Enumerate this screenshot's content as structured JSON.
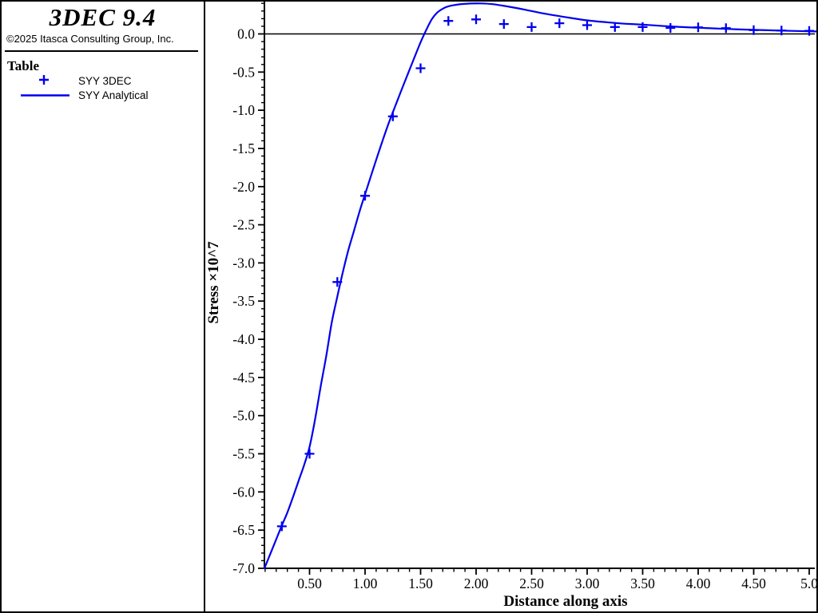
{
  "branding": {
    "title": "3DEC 9.4",
    "copyright": "©2025 Itasca Consulting Group, Inc."
  },
  "legend": {
    "heading": "Table",
    "items": [
      {
        "label": "SYY 3DEC",
        "marker": "plus-marker-icon"
      },
      {
        "label": "SYY Analytical",
        "marker": "line-marker-icon"
      }
    ]
  },
  "colors": {
    "series_blue": "#0000ee",
    "axis_black": "#000000",
    "background": "#ffffff"
  },
  "chart_data": {
    "type": "line",
    "title": "",
    "xlabel": "Distance along axis",
    "ylabel": "Stress ×10^7",
    "xlim": [
      0.094,
      5.08
    ],
    "ylim": [
      -7.0,
      0.42
    ],
    "grid": false,
    "legend_position": "sidebar-top-left",
    "x_major_ticks": [
      0.5,
      1.0,
      1.5,
      2.0,
      2.5,
      3.0,
      3.5,
      4.0,
      4.5,
      5.0
    ],
    "x_tick_labels": [
      "0.50",
      "1.00",
      "1.50",
      "2.00",
      "2.50",
      "3.00",
      "3.50",
      "4.00",
      "4.50",
      "5.0"
    ],
    "y_major_ticks": [
      0.0,
      -0.5,
      -1.0,
      -1.5,
      -2.0,
      -2.5,
      -3.0,
      -3.5,
      -4.0,
      -4.5,
      -5.0,
      -5.5,
      -6.0,
      -6.5,
      -7.0
    ],
    "y_tick_labels": [
      "0.0",
      "-0.5",
      "-1.0",
      "-1.5",
      "-2.0",
      "-2.5",
      "-3.0",
      "-3.5",
      "-4.0",
      "-4.5",
      "-5.0",
      "-5.5",
      "-6.0",
      "-6.5",
      "-7.0"
    ],
    "minor_tick_step": 0.1,
    "x_minor_range": [
      0.1,
      5.0
    ],
    "y_minor_range": [
      -6.9,
      0.4
    ],
    "zero_line": 0.0,
    "series": [
      {
        "name": "SYY 3DEC",
        "type": "scatter",
        "marker": "plus",
        "color": "#0000ee",
        "points": [
          [
            0.25,
            -6.45
          ],
          [
            0.5,
            -5.5
          ],
          [
            0.75,
            -3.25
          ],
          [
            1.0,
            -2.12
          ],
          [
            1.25,
            -1.08
          ],
          [
            1.5,
            -0.45
          ],
          [
            1.75,
            0.17
          ],
          [
            2.0,
            0.19
          ],
          [
            2.25,
            0.13
          ],
          [
            2.5,
            0.09
          ],
          [
            2.75,
            0.14
          ],
          [
            3.0,
            0.115
          ],
          [
            3.25,
            0.09
          ],
          [
            3.5,
            0.09
          ],
          [
            3.75,
            0.078
          ],
          [
            4.0,
            0.086
          ],
          [
            4.25,
            0.075
          ],
          [
            4.5,
            0.05
          ],
          [
            4.75,
            0.044
          ],
          [
            5.0,
            0.04
          ]
        ]
      },
      {
        "name": "SYY Analytical",
        "type": "line",
        "color": "#0000ee",
        "points": [
          [
            0.094,
            -7.0
          ],
          [
            0.15,
            -6.8
          ],
          [
            0.2,
            -6.62
          ],
          [
            0.25,
            -6.44
          ],
          [
            0.3,
            -6.27
          ],
          [
            0.35,
            -6.07
          ],
          [
            0.4,
            -5.86
          ],
          [
            0.45,
            -5.65
          ],
          [
            0.5,
            -5.41
          ],
          [
            0.55,
            -5.05
          ],
          [
            0.6,
            -4.62
          ],
          [
            0.65,
            -4.22
          ],
          [
            0.7,
            -3.78
          ],
          [
            0.75,
            -3.44
          ],
          [
            0.8,
            -3.12
          ],
          [
            0.85,
            -2.83
          ],
          [
            0.9,
            -2.58
          ],
          [
            0.95,
            -2.33
          ],
          [
            1.0,
            -2.1
          ],
          [
            1.1,
            -1.65
          ],
          [
            1.2,
            -1.22
          ],
          [
            1.3,
            -0.84
          ],
          [
            1.4,
            -0.47
          ],
          [
            1.45,
            -0.29
          ],
          [
            1.5,
            -0.11
          ],
          [
            1.55,
            0.05
          ],
          [
            1.6,
            0.19
          ],
          [
            1.65,
            0.28
          ],
          [
            1.7,
            0.33
          ],
          [
            1.75,
            0.362
          ],
          [
            1.85,
            0.388
          ],
          [
            1.95,
            0.398
          ],
          [
            2.05,
            0.399
          ],
          [
            2.15,
            0.39
          ],
          [
            2.3,
            0.355
          ],
          [
            2.45,
            0.315
          ],
          [
            2.6,
            0.27
          ],
          [
            2.8,
            0.222
          ],
          [
            3.0,
            0.178
          ],
          [
            3.2,
            0.15
          ],
          [
            3.35,
            0.133
          ],
          [
            3.5,
            0.122
          ],
          [
            3.75,
            0.098
          ],
          [
            4.0,
            0.082
          ],
          [
            4.25,
            0.066
          ],
          [
            4.5,
            0.053
          ],
          [
            4.75,
            0.043
          ],
          [
            5.0,
            0.035
          ],
          [
            5.08,
            0.032
          ]
        ]
      }
    ]
  }
}
